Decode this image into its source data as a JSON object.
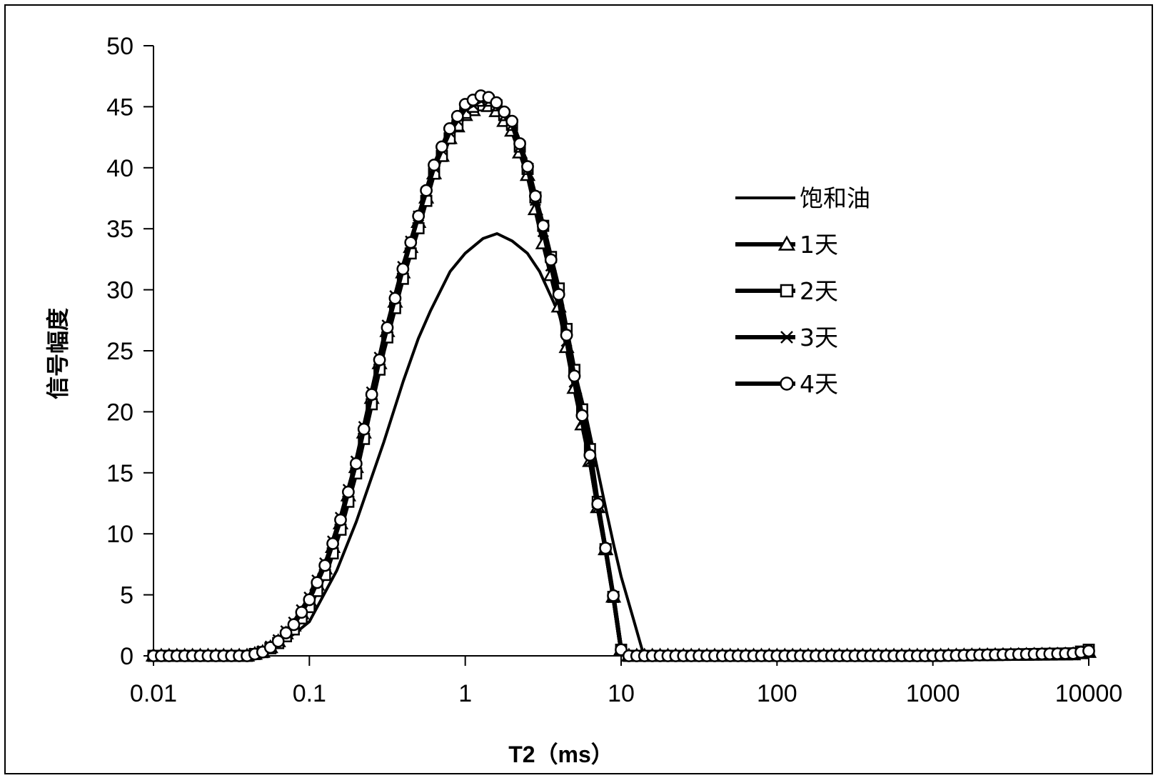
{
  "chart_data": {
    "type": "line",
    "xscale": "log",
    "xlabel": "T2（ms）",
    "ylabel": "信号幅度",
    "xlim": [
      0.01,
      10000
    ],
    "ylim": [
      0,
      50
    ],
    "xticks": [
      "0.01",
      "0.1",
      "1",
      "10",
      "100",
      "1000",
      "10000"
    ],
    "yticks": [
      "0",
      "5",
      "10",
      "15",
      "20",
      "25",
      "30",
      "35",
      "40",
      "45",
      "50"
    ],
    "grid": false,
    "legend_position": "right",
    "series": [
      {
        "name": "饱和油",
        "marker": "none",
        "x": [
          0.01,
          0.02,
          0.04,
          0.06,
          0.08,
          0.1,
          0.15,
          0.2,
          0.3,
          0.4,
          0.5,
          0.6,
          0.8,
          1.0,
          1.3,
          1.6,
          2.0,
          2.5,
          3.0,
          4.0,
          5.0,
          6.0,
          7.0,
          8.0,
          9.0,
          10.0,
          12.0,
          14.0,
          20,
          100,
          1000,
          10000
        ],
        "y": [
          0,
          0,
          0.1,
          0.8,
          1.8,
          2.8,
          7,
          11,
          17.5,
          22.5,
          26,
          28.3,
          31.5,
          33,
          34.2,
          34.6,
          34,
          33,
          31.5,
          28,
          23.5,
          19.5,
          15.5,
          12,
          9,
          6.5,
          3,
          0,
          0,
          0,
          0,
          0
        ]
      },
      {
        "name": "1天",
        "marker": "triangle",
        "x": [
          0.01,
          0.02,
          0.04,
          0.05,
          0.06,
          0.08,
          0.1,
          0.13,
          0.16,
          0.2,
          0.25,
          0.3,
          0.4,
          0.5,
          0.63,
          0.8,
          1.0,
          1.26,
          1.5,
          2.0,
          2.5,
          3.2,
          4.0,
          5.0,
          6.3,
          7.0,
          8.0,
          9.0,
          10.0,
          10.5,
          20,
          100,
          1000,
          8000,
          10000
        ],
        "y": [
          0,
          0,
          0,
          0.3,
          0.9,
          2.5,
          4.5,
          7.5,
          11,
          15.5,
          21,
          25.5,
          31.5,
          35.5,
          39.5,
          42.5,
          44.3,
          45.1,
          45,
          43,
          39.5,
          33.5,
          28.5,
          22,
          16,
          12.5,
          8.5,
          4.5,
          0.5,
          0,
          0,
          0,
          0,
          0.1,
          0.3
        ]
      },
      {
        "name": "2天",
        "marker": "square",
        "x": [
          0.01,
          0.02,
          0.04,
          0.05,
          0.06,
          0.08,
          0.1,
          0.13,
          0.16,
          0.2,
          0.25,
          0.3,
          0.4,
          0.5,
          0.63,
          0.8,
          1.0,
          1.26,
          1.5,
          2.0,
          2.5,
          3.2,
          4.0,
          5.0,
          6.3,
          7.0,
          8.0,
          9.0,
          10.0,
          10.5,
          20,
          100,
          1000,
          8000,
          10000
        ],
        "y": [
          0,
          0,
          0,
          0.3,
          0.8,
          2.2,
          4,
          7,
          10.5,
          15,
          20.5,
          25,
          31,
          35,
          39.5,
          42.5,
          44.5,
          45.5,
          45.5,
          43.5,
          40,
          35,
          30,
          23.5,
          17,
          13,
          8.5,
          4.5,
          0.5,
          0,
          0,
          0,
          0,
          0.2,
          0.5
        ]
      },
      {
        "name": "3天",
        "marker": "x",
        "x": [
          0.01,
          0.02,
          0.04,
          0.05,
          0.06,
          0.08,
          0.1,
          0.13,
          0.16,
          0.2,
          0.25,
          0.3,
          0.4,
          0.5,
          0.63,
          0.8,
          1.0,
          1.26,
          1.5,
          2.0,
          2.5,
          3.2,
          4.0,
          5.0,
          6.3,
          7.0,
          8.0,
          9.0,
          10.0,
          10.5,
          20,
          100,
          1000,
          8000,
          10000
        ],
        "y": [
          0,
          0,
          0,
          0.4,
          1.0,
          2.8,
          4.8,
          8,
          11.5,
          16,
          21.5,
          26,
          32,
          36,
          40,
          43,
          44.8,
          45.5,
          45.4,
          43.5,
          40,
          34.5,
          29,
          22.5,
          16,
          12.5,
          8.5,
          4.5,
          0.5,
          0,
          0,
          0,
          0,
          0.1,
          0.3
        ]
      },
      {
        "name": "4天",
        "marker": "circle",
        "x": [
          0.01,
          0.02,
          0.04,
          0.05,
          0.06,
          0.08,
          0.1,
          0.13,
          0.16,
          0.2,
          0.25,
          0.3,
          0.4,
          0.5,
          0.63,
          0.8,
          1.0,
          1.26,
          1.5,
          2.0,
          2.5,
          3.2,
          4.0,
          5.0,
          6.3,
          7.0,
          8.0,
          9.0,
          10.0,
          10.5,
          20,
          100,
          1000,
          8000,
          10000
        ],
        "y": [
          0,
          0,
          0,
          0.3,
          0.9,
          2.6,
          4.6,
          7.8,
          11.3,
          15.8,
          21.3,
          25.8,
          31.8,
          36,
          40.2,
          43.3,
          45.2,
          45.9,
          45.7,
          43.8,
          40.2,
          35,
          29.5,
          23,
          16.5,
          12.8,
          8.6,
          4.6,
          0.5,
          0,
          0,
          0,
          0,
          0.2,
          0.4
        ]
      }
    ]
  }
}
